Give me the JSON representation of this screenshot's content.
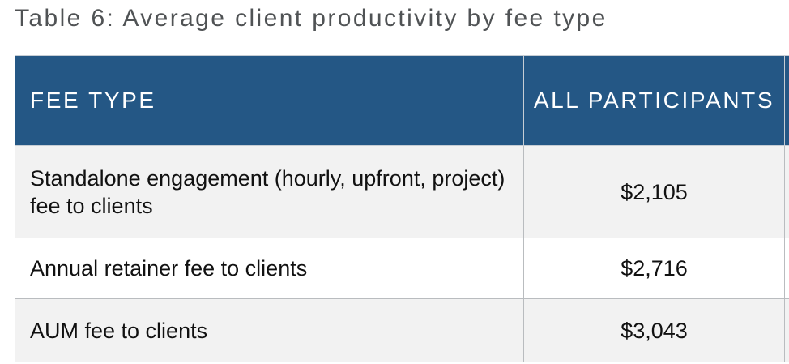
{
  "title": "Table 6: Average client productivity by fee type",
  "table": {
    "headers": {
      "fee_type": "FEE TYPE",
      "all_participants": "ALL PARTICIPANTS"
    },
    "rows": [
      {
        "fee_type": "Standalone engagement (hourly, upfront, project) fee to clients",
        "all_participants": "$2,105"
      },
      {
        "fee_type": "Annual retainer fee to clients",
        "all_participants": "$2,716"
      },
      {
        "fee_type": "AUM fee to clients",
        "all_participants": "$3,043"
      }
    ]
  },
  "colors": {
    "header_background": "#245785",
    "header_text": "#ffffff",
    "title_text": "#505355",
    "shaded_row": "#f2f2f2",
    "border": "#b9bcbf"
  }
}
